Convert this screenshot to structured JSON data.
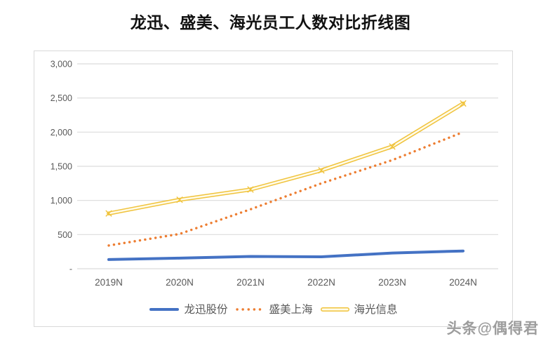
{
  "page": {
    "watermark": "头条@偶得君"
  },
  "chart_data": {
    "type": "line",
    "title": "龙迅、盛美、海光员工人数对比折线图",
    "categories": [
      "2019N",
      "2020N",
      "2021N",
      "2022N",
      "2023N",
      "2024N"
    ],
    "series": [
      {
        "name": "龙迅股份",
        "values": [
          135,
          155,
          180,
          175,
          230,
          260
        ],
        "color": "#4472C4",
        "style": "solid"
      },
      {
        "name": "盛美上海",
        "values": [
          340,
          510,
          870,
          1250,
          1590,
          2000
        ],
        "color": "#ED7D31",
        "style": "dotted"
      },
      {
        "name": "海光信息",
        "values": [
          810,
          1010,
          1160,
          1440,
          1790,
          2420
        ],
        "color": "#F0C33C",
        "inner_color": "#FFFBE8",
        "style": "outlined"
      }
    ],
    "ylim": [
      0,
      3000
    ],
    "ytick_interval": 500,
    "ytick_labels": [
      "-",
      "500",
      "1,000",
      "1,500",
      "2,000",
      "2,500",
      "3,000"
    ],
    "grid": true,
    "gridline_color": "#DCDCDC",
    "label_color": "#595959",
    "legend_position": "bottom"
  }
}
